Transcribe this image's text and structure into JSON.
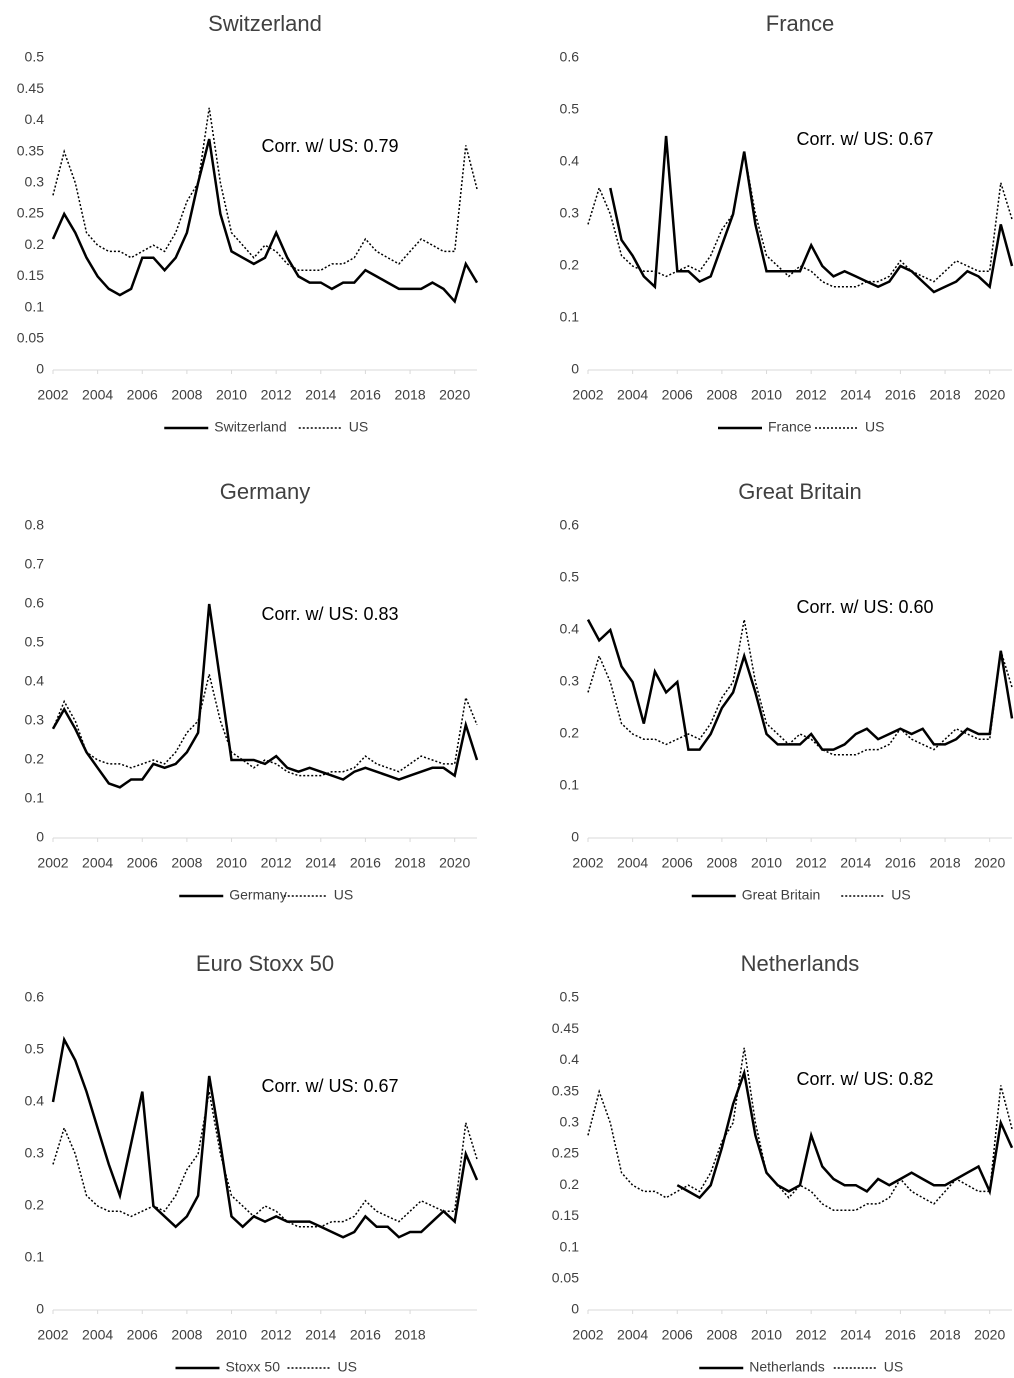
{
  "chart_data": [
    {
      "type": "line",
      "title": "Switzerland",
      "annotation": "Corr. w/ US: 0.79",
      "x": [
        2002,
        2002.5,
        2003,
        2003.5,
        2004,
        2004.5,
        2005,
        2005.5,
        2006,
        2006.5,
        2007,
        2007.5,
        2008,
        2008.5,
        2009,
        2009.5,
        2010,
        2010.5,
        2011,
        2011.5,
        2012,
        2012.5,
        2013,
        2013.5,
        2014,
        2014.5,
        2015,
        2015.5,
        2016,
        2016.5,
        2017,
        2017.5,
        2018,
        2018.5,
        2019,
        2019.5,
        2020,
        2020.5,
        2021
      ],
      "series": [
        {
          "name": "Switzerland",
          "color": "#000000",
          "dash": "solid",
          "values": [
            0.21,
            0.25,
            0.22,
            0.18,
            0.15,
            0.13,
            0.12,
            0.13,
            0.18,
            0.18,
            0.16,
            0.18,
            0.22,
            0.3,
            0.37,
            0.25,
            0.19,
            0.18,
            0.17,
            0.18,
            0.22,
            0.18,
            0.15,
            0.14,
            0.14,
            0.13,
            0.14,
            0.14,
            0.16,
            0.15,
            0.14,
            0.13,
            0.13,
            0.13,
            0.14,
            0.13,
            0.11,
            0.17,
            0.14
          ]
        },
        {
          "name": "US",
          "color": "#000000",
          "dash": "dotted",
          "values": [
            0.28,
            0.35,
            0.3,
            0.22,
            0.2,
            0.19,
            0.19,
            0.18,
            0.19,
            0.2,
            0.19,
            0.22,
            0.27,
            0.3,
            0.42,
            0.3,
            0.22,
            0.2,
            0.18,
            0.2,
            0.19,
            0.17,
            0.16,
            0.16,
            0.16,
            0.17,
            0.17,
            0.18,
            0.21,
            0.19,
            0.18,
            0.17,
            0.19,
            0.21,
            0.2,
            0.19,
            0.19,
            0.36,
            0.29
          ]
        }
      ],
      "xlim": [
        2002,
        2021
      ],
      "xticks": [
        2002,
        2004,
        2006,
        2008,
        2010,
        2012,
        2014,
        2016,
        2018,
        2020
      ],
      "ylim": [
        0,
        0.5
      ],
      "yticks": [
        0,
        0.05,
        0.1,
        0.15,
        0.2,
        0.25,
        0.3,
        0.35,
        0.4,
        0.45,
        0.5
      ]
    },
    {
      "type": "line",
      "title": "France",
      "annotation": "Corr. w/ US:  0.67",
      "x": [
        2002,
        2002.5,
        2003,
        2003.5,
        2004,
        2004.5,
        2005,
        2005.5,
        2006,
        2006.5,
        2007,
        2007.5,
        2008,
        2008.5,
        2009,
        2009.5,
        2010,
        2010.5,
        2011,
        2011.5,
        2012,
        2012.5,
        2013,
        2013.5,
        2014,
        2014.5,
        2015,
        2015.5,
        2016,
        2016.5,
        2017,
        2017.5,
        2018,
        2018.5,
        2019,
        2019.5,
        2020,
        2020.5,
        2021
      ],
      "series": [
        {
          "name": "France",
          "color": "#000000",
          "dash": "solid",
          "values": [
            null,
            null,
            0.35,
            0.25,
            0.22,
            0.18,
            0.16,
            0.45,
            0.19,
            0.19,
            0.17,
            0.18,
            0.24,
            0.3,
            0.42,
            0.28,
            0.19,
            0.19,
            0.19,
            0.19,
            0.24,
            0.2,
            0.18,
            0.19,
            0.18,
            0.17,
            0.16,
            0.17,
            0.2,
            0.19,
            0.17,
            0.15,
            0.16,
            0.17,
            0.19,
            0.18,
            0.16,
            0.28,
            0.2
          ]
        },
        {
          "name": "US",
          "color": "#000000",
          "dash": "dotted",
          "values": [
            0.28,
            0.35,
            0.3,
            0.22,
            0.2,
            0.19,
            0.19,
            0.18,
            0.19,
            0.2,
            0.19,
            0.22,
            0.27,
            0.3,
            0.42,
            0.3,
            0.22,
            0.2,
            0.18,
            0.2,
            0.19,
            0.17,
            0.16,
            0.16,
            0.16,
            0.17,
            0.17,
            0.18,
            0.21,
            0.19,
            0.18,
            0.17,
            0.19,
            0.21,
            0.2,
            0.19,
            0.19,
            0.36,
            0.29
          ]
        }
      ],
      "xlim": [
        2002,
        2021
      ],
      "xticks": [
        2002,
        2004,
        2006,
        2008,
        2010,
        2012,
        2014,
        2016,
        2018,
        2020
      ],
      "ylim": [
        0,
        0.6
      ],
      "yticks": [
        0,
        0.1,
        0.2,
        0.3,
        0.4,
        0.5,
        0.6
      ]
    },
    {
      "type": "line",
      "title": "Germany",
      "annotation": "Corr. w/ US: 0.83",
      "x": [
        2002,
        2002.5,
        2003,
        2003.5,
        2004,
        2004.5,
        2005,
        2005.5,
        2006,
        2006.5,
        2007,
        2007.5,
        2008,
        2008.5,
        2009,
        2009.5,
        2010,
        2010.5,
        2011,
        2011.5,
        2012,
        2012.5,
        2013,
        2013.5,
        2014,
        2014.5,
        2015,
        2015.5,
        2016,
        2016.5,
        2017,
        2017.5,
        2018,
        2018.5,
        2019,
        2019.5,
        2020,
        2020.5,
        2021
      ],
      "series": [
        {
          "name": "Germany",
          "color": "#000000",
          "dash": "solid",
          "values": [
            0.28,
            0.33,
            0.28,
            0.22,
            0.18,
            0.14,
            0.13,
            0.15,
            0.15,
            0.19,
            0.18,
            0.19,
            0.22,
            0.27,
            0.6,
            0.4,
            0.2,
            0.2,
            0.2,
            0.19,
            0.21,
            0.18,
            0.17,
            0.18,
            0.17,
            0.16,
            0.15,
            0.17,
            0.18,
            0.17,
            0.16,
            0.15,
            0.16,
            0.17,
            0.18,
            0.18,
            0.16,
            0.29,
            0.2
          ]
        },
        {
          "name": "US",
          "color": "#000000",
          "dash": "dotted",
          "values": [
            0.28,
            0.35,
            0.3,
            0.22,
            0.2,
            0.19,
            0.19,
            0.18,
            0.19,
            0.2,
            0.19,
            0.22,
            0.27,
            0.3,
            0.42,
            0.3,
            0.22,
            0.2,
            0.18,
            0.2,
            0.19,
            0.17,
            0.16,
            0.16,
            0.16,
            0.17,
            0.17,
            0.18,
            0.21,
            0.19,
            0.18,
            0.17,
            0.19,
            0.21,
            0.2,
            0.19,
            0.19,
            0.36,
            0.29
          ]
        }
      ],
      "xlim": [
        2002,
        2021
      ],
      "xticks": [
        2002,
        2004,
        2006,
        2008,
        2010,
        2012,
        2014,
        2016,
        2018,
        2020
      ],
      "ylim": [
        0,
        0.8
      ],
      "yticks": [
        0,
        0.1,
        0.2,
        0.3,
        0.4,
        0.5,
        0.6,
        0.7,
        0.8
      ]
    },
    {
      "type": "line",
      "title": "Great Britain",
      "annotation": "Corr. w/ US: 0.60",
      "x": [
        2002,
        2002.5,
        2003,
        2003.5,
        2004,
        2004.5,
        2005,
        2005.5,
        2006,
        2006.5,
        2007,
        2007.5,
        2008,
        2008.5,
        2009,
        2009.5,
        2010,
        2010.5,
        2011,
        2011.5,
        2012,
        2012.5,
        2013,
        2013.5,
        2014,
        2014.5,
        2015,
        2015.5,
        2016,
        2016.5,
        2017,
        2017.5,
        2018,
        2018.5,
        2019,
        2019.5,
        2020,
        2020.5,
        2021
      ],
      "series": [
        {
          "name": "Great Britain",
          "color": "#000000",
          "dash": "solid",
          "values": [
            0.42,
            0.38,
            0.4,
            0.33,
            0.3,
            0.22,
            0.32,
            0.28,
            0.3,
            0.17,
            0.17,
            0.2,
            0.25,
            0.28,
            0.35,
            0.28,
            0.2,
            0.18,
            0.18,
            0.18,
            0.2,
            0.17,
            0.17,
            0.18,
            0.2,
            0.21,
            0.19,
            0.2,
            0.21,
            0.2,
            0.21,
            0.18,
            0.18,
            0.19,
            0.21,
            0.2,
            0.2,
            0.36,
            0.23
          ]
        },
        {
          "name": "US",
          "color": "#000000",
          "dash": "dotted",
          "values": [
            0.28,
            0.35,
            0.3,
            0.22,
            0.2,
            0.19,
            0.19,
            0.18,
            0.19,
            0.2,
            0.19,
            0.22,
            0.27,
            0.3,
            0.42,
            0.3,
            0.22,
            0.2,
            0.18,
            0.2,
            0.19,
            0.17,
            0.16,
            0.16,
            0.16,
            0.17,
            0.17,
            0.18,
            0.21,
            0.19,
            0.18,
            0.17,
            0.19,
            0.21,
            0.2,
            0.19,
            0.19,
            0.36,
            0.29
          ]
        }
      ],
      "xlim": [
        2002,
        2021
      ],
      "xticks": [
        2002,
        2004,
        2006,
        2008,
        2010,
        2012,
        2014,
        2016,
        2018,
        2020
      ],
      "ylim": [
        0,
        0.6
      ],
      "yticks": [
        0,
        0.1,
        0.2,
        0.3,
        0.4,
        0.5,
        0.6
      ]
    },
    {
      "type": "line",
      "title": "Euro Stoxx 50",
      "annotation": "Corr. w/ US: 0.67",
      "x": [
        2002,
        2002.5,
        2003,
        2003.5,
        2004,
        2004.5,
        2005,
        2005.5,
        2006,
        2006.5,
        2007,
        2007.5,
        2008,
        2008.5,
        2009,
        2009.5,
        2010,
        2010.5,
        2011,
        2011.5,
        2012,
        2012.5,
        2013,
        2013.5,
        2014,
        2014.5,
        2015,
        2015.5,
        2016,
        2016.5,
        2017,
        2017.5,
        2018,
        2018.5,
        2019,
        2019.5,
        2020,
        2020.5,
        2021
      ],
      "series": [
        {
          "name": "Stoxx 50",
          "color": "#000000",
          "dash": "solid",
          "values": [
            0.4,
            0.52,
            0.48,
            0.42,
            0.35,
            0.28,
            0.22,
            0.32,
            0.42,
            0.2,
            0.18,
            0.16,
            0.18,
            0.22,
            0.45,
            0.32,
            0.18,
            0.16,
            0.18,
            0.17,
            0.18,
            0.17,
            0.17,
            0.17,
            0.16,
            0.15,
            0.14,
            0.15,
            0.18,
            0.16,
            0.16,
            0.14,
            0.15,
            0.15,
            0.17,
            0.19,
            0.17,
            0.3,
            0.25
          ]
        },
        {
          "name": "US",
          "color": "#000000",
          "dash": "dotted",
          "values": [
            0.28,
            0.35,
            0.3,
            0.22,
            0.2,
            0.19,
            0.19,
            0.18,
            0.19,
            0.2,
            0.19,
            0.22,
            0.27,
            0.3,
            0.42,
            0.3,
            0.22,
            0.2,
            0.18,
            0.2,
            0.19,
            0.17,
            0.16,
            0.16,
            0.16,
            0.17,
            0.17,
            0.18,
            0.21,
            0.19,
            0.18,
            0.17,
            0.19,
            0.21,
            0.2,
            0.19,
            0.19,
            0.36,
            0.29
          ]
        }
      ],
      "xlim": [
        2002,
        2021
      ],
      "xticks": [
        2002,
        2004,
        2006,
        2008,
        2010,
        2012,
        2014,
        2016,
        2018
      ],
      "ylim": [
        0,
        0.6
      ],
      "yticks": [
        0,
        0.1,
        0.2,
        0.3,
        0.4,
        0.5,
        0.6
      ]
    },
    {
      "type": "line",
      "title": "Netherlands",
      "annotation": "Corr. w/ US: 0.82",
      "x": [
        2002,
        2002.5,
        2003,
        2003.5,
        2004,
        2004.5,
        2005,
        2005.5,
        2006,
        2006.5,
        2007,
        2007.5,
        2008,
        2008.5,
        2009,
        2009.5,
        2010,
        2010.5,
        2011,
        2011.5,
        2012,
        2012.5,
        2013,
        2013.5,
        2014,
        2014.5,
        2015,
        2015.5,
        2016,
        2016.5,
        2017,
        2017.5,
        2018,
        2018.5,
        2019,
        2019.5,
        2020,
        2020.5,
        2021
      ],
      "series": [
        {
          "name": "Netherlands",
          "color": "#000000",
          "dash": "solid",
          "values": [
            null,
            null,
            null,
            null,
            null,
            null,
            null,
            null,
            0.2,
            0.19,
            0.18,
            0.2,
            0.26,
            0.33,
            0.38,
            0.28,
            0.22,
            0.2,
            0.19,
            0.2,
            0.28,
            0.23,
            0.21,
            0.2,
            0.2,
            0.19,
            0.21,
            0.2,
            0.21,
            0.22,
            0.21,
            0.2,
            0.2,
            0.21,
            0.22,
            0.23,
            0.19,
            0.3,
            0.26
          ]
        },
        {
          "name": "US",
          "color": "#000000",
          "dash": "dotted",
          "values": [
            0.28,
            0.35,
            0.3,
            0.22,
            0.2,
            0.19,
            0.19,
            0.18,
            0.19,
            0.2,
            0.19,
            0.22,
            0.27,
            0.3,
            0.42,
            0.3,
            0.22,
            0.2,
            0.18,
            0.2,
            0.19,
            0.17,
            0.16,
            0.16,
            0.16,
            0.17,
            0.17,
            0.18,
            0.21,
            0.19,
            0.18,
            0.17,
            0.19,
            0.21,
            0.2,
            0.19,
            0.19,
            0.36,
            0.29
          ]
        }
      ],
      "xlim": [
        2002,
        2021
      ],
      "xticks": [
        2002,
        2004,
        2006,
        2008,
        2010,
        2012,
        2014,
        2016,
        2018,
        2020
      ],
      "ylim": [
        0,
        0.5
      ],
      "yticks": [
        0,
        0.05,
        0.1,
        0.15,
        0.2,
        0.25,
        0.3,
        0.35,
        0.4,
        0.45,
        0.5
      ]
    }
  ]
}
